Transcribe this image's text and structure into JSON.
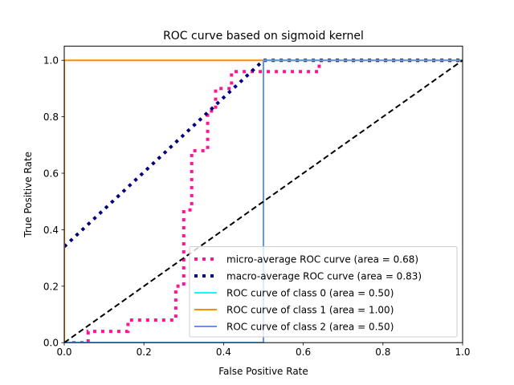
{
  "chart_data": {
    "type": "line",
    "title": "ROC curve based on sigmoid kernel",
    "xlabel": "False Positive Rate",
    "ylabel": "True Positive Rate",
    "xlim": [
      0.0,
      1.0
    ],
    "ylim": [
      0.0,
      1.05
    ],
    "xticks": [
      0.0,
      0.2,
      0.4,
      0.6,
      0.8,
      1.0
    ],
    "yticks": [
      0.0,
      0.2,
      0.4,
      0.6,
      0.8,
      1.0
    ],
    "xtick_labels": [
      "0.0",
      "0.2",
      "0.4",
      "0.6",
      "0.8",
      "1.0"
    ],
    "ytick_labels": [
      "0.0",
      "0.2",
      "0.4",
      "0.6",
      "0.8",
      "1.0"
    ],
    "grid": false,
    "legend_position": "lower-right",
    "series": [
      {
        "name": "micro-average ROC curve (area = 0.68)",
        "color": "#ff1493",
        "style": "dotted-thick",
        "x": [
          0.0,
          0.0,
          0.06,
          0.06,
          0.16,
          0.16,
          0.28,
          0.28,
          0.3,
          0.3,
          0.32,
          0.32,
          0.36,
          0.36,
          0.38,
          0.38,
          0.42,
          0.42,
          0.64,
          0.64,
          1.0,
          1.0
        ],
        "y": [
          0.0,
          0.0,
          0.0,
          0.04,
          0.04,
          0.08,
          0.08,
          0.2,
          0.2,
          0.47,
          0.47,
          0.68,
          0.68,
          0.82,
          0.82,
          0.9,
          0.9,
          0.96,
          0.96,
          1.0,
          1.0,
          1.0
        ]
      },
      {
        "name": "macro-average ROC curve (area = 0.83)",
        "color": "#000080",
        "style": "dotted-thick",
        "x": [
          0.0,
          0.5,
          1.0
        ],
        "y": [
          0.34,
          1.0,
          1.0
        ]
      },
      {
        "name": "ROC curve of class 0 (area = 0.50)",
        "color": "#00ffff",
        "style": "solid",
        "x": [
          0.0,
          0.5,
          0.5,
          1.0
        ],
        "y": [
          0.0,
          0.0,
          1.0,
          1.0
        ]
      },
      {
        "name": "ROC curve of class 1 (area = 1.00)",
        "color": "#ff8c00",
        "style": "solid",
        "x": [
          0.0,
          0.0,
          1.0
        ],
        "y": [
          0.0,
          1.0,
          1.0
        ]
      },
      {
        "name": "ROC curve of class 2 (area = 0.50)",
        "color": "#6495ed",
        "style": "solid",
        "x": [
          0.0,
          0.5,
          0.5,
          1.0
        ],
        "y": [
          0.0,
          0.0,
          1.0,
          1.0
        ]
      }
    ],
    "reference_line": {
      "color": "#000000",
      "style": "dashed",
      "x": [
        0.0,
        1.0
      ],
      "y": [
        0.0,
        1.0
      ]
    }
  }
}
